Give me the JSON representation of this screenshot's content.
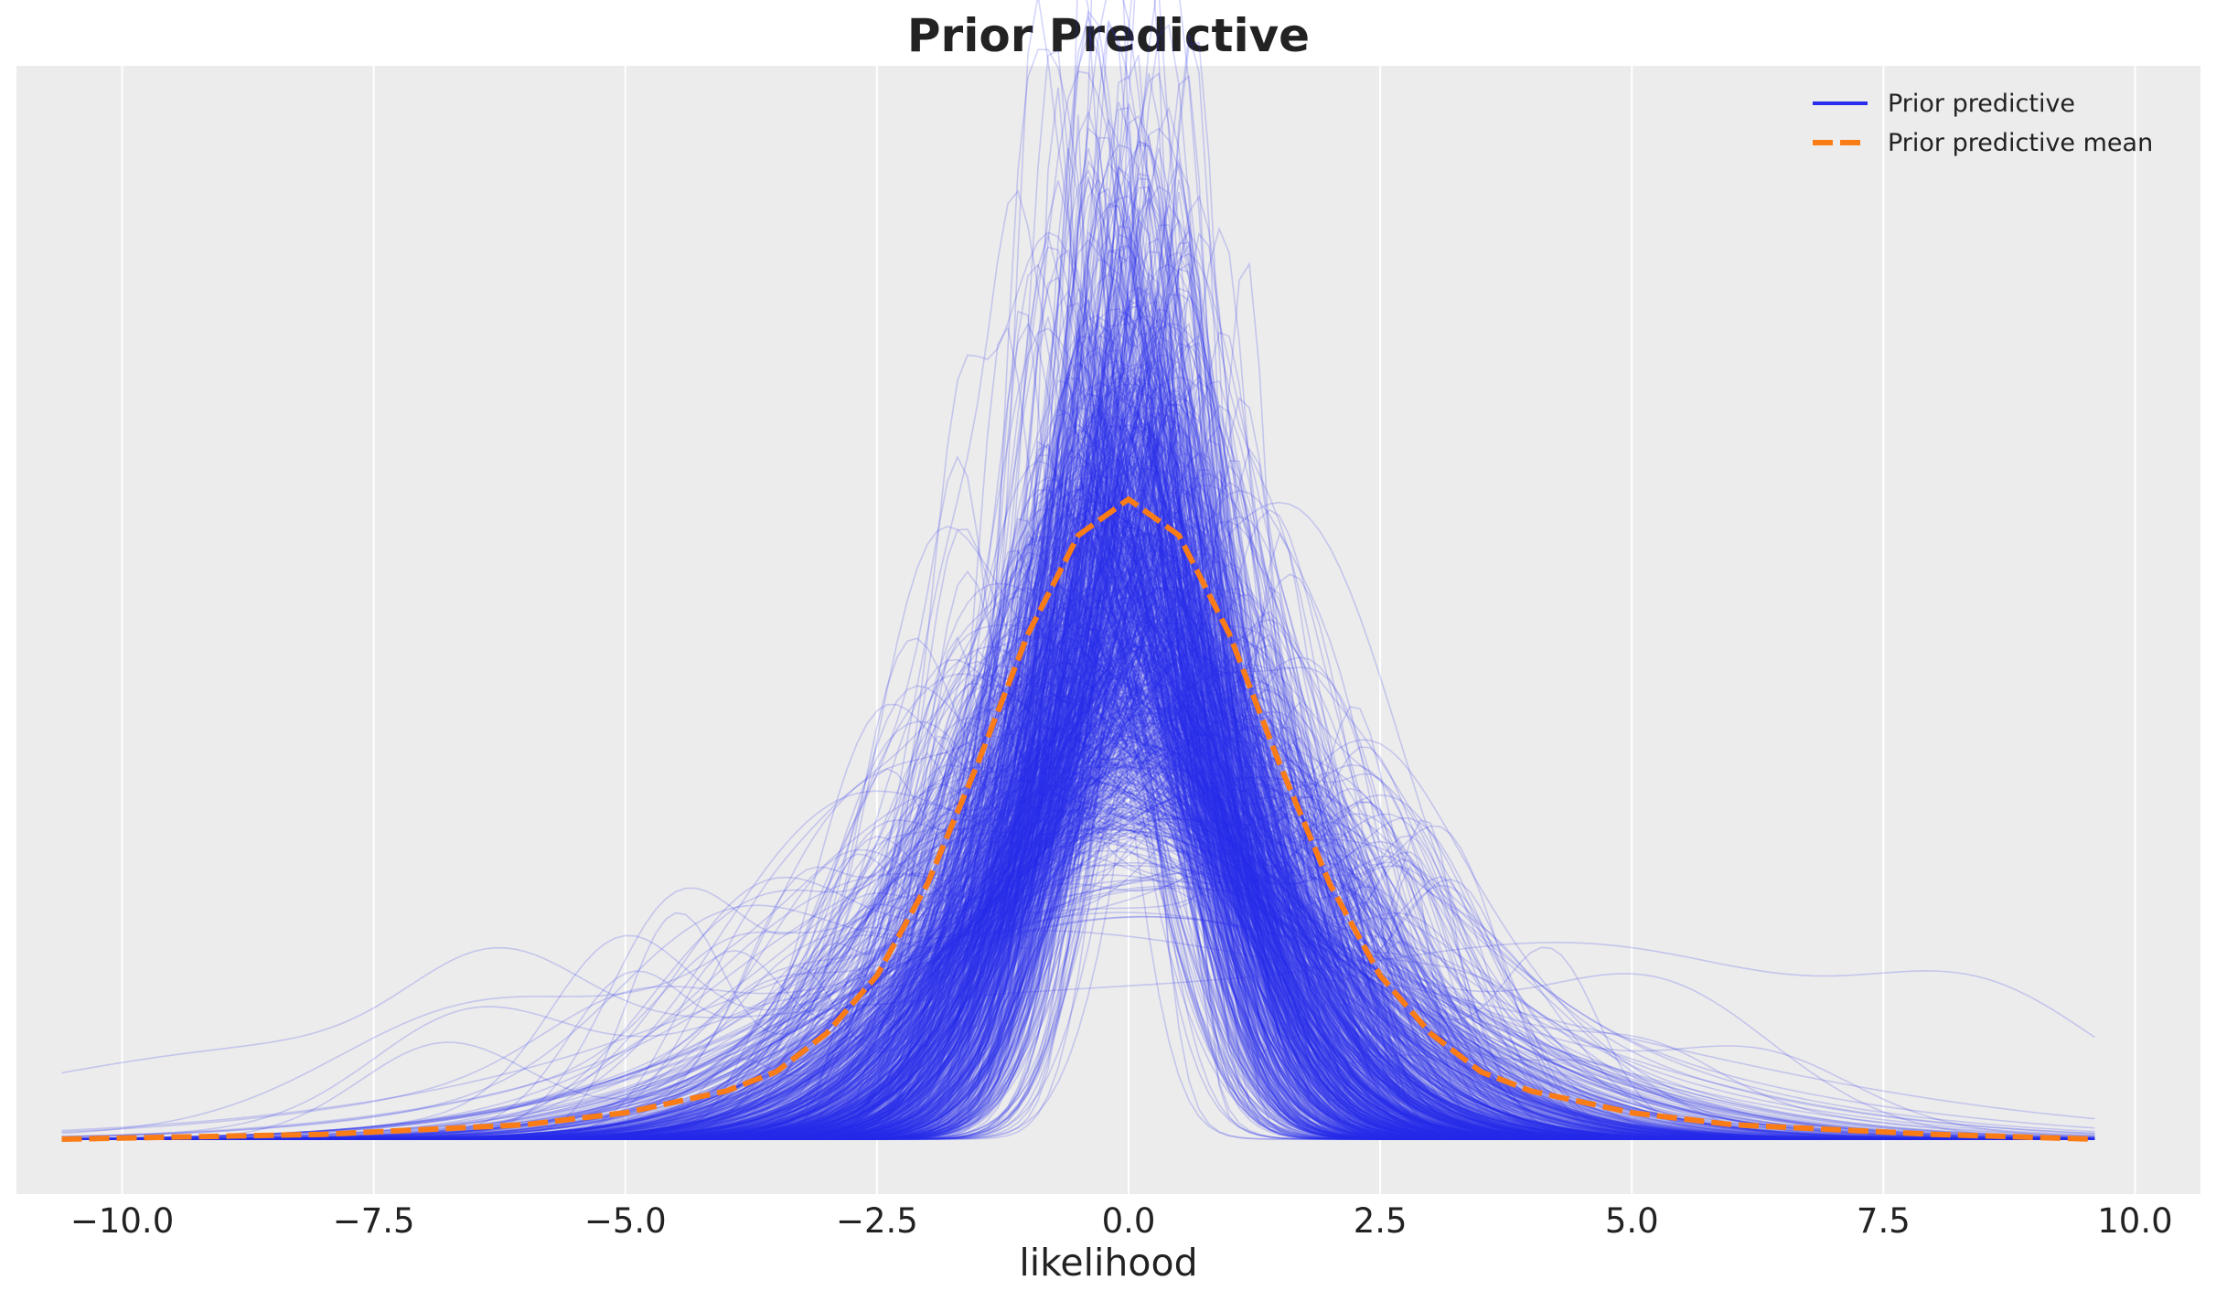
{
  "chart_data": {
    "type": "line",
    "title": "Prior Predictive",
    "xlabel": "likelihood",
    "ylabel": "",
    "xlim": [
      -11.05,
      10.65
    ],
    "x_ticks": [
      -10.0,
      -7.5,
      -5.0,
      -2.5,
      0.0,
      2.5,
      5.0,
      7.5,
      10.0
    ],
    "x_tick_labels": [
      "−10.0",
      "−7.5",
      "−5.0",
      "−2.5",
      "0.0",
      "2.5",
      "5.0",
      "7.5",
      "10.0"
    ],
    "y_ticks_visible": false,
    "grid": "x",
    "legend_position": "top-right",
    "background": "#ececec",
    "series": [
      {
        "name": "Prior predictive",
        "kind": "sample-densities",
        "color": "#2a2eec",
        "opacity": 0.2,
        "approx_sample_count": 1000,
        "x_range": [
          -10.6,
          9.6
        ]
      },
      {
        "name": "Prior predictive mean",
        "kind": "mean-density",
        "color": "#fa7c17",
        "dashed": true,
        "x": [
          -10.6,
          -8.0,
          -6.0,
          -5.0,
          -4.0,
          -3.5,
          -3.0,
          -2.5,
          -2.0,
          -1.5,
          -1.0,
          -0.5,
          0.0,
          0.5,
          1.0,
          1.5,
          2.0,
          2.5,
          3.0,
          3.5,
          4.0,
          5.0,
          6.0,
          8.0,
          9.6
        ],
        "y": [
          0.0,
          0.002,
          0.006,
          0.011,
          0.02,
          0.028,
          0.044,
          0.068,
          0.106,
          0.156,
          0.21,
          0.251,
          0.266,
          0.251,
          0.21,
          0.156,
          0.106,
          0.068,
          0.044,
          0.028,
          0.02,
          0.011,
          0.006,
          0.002,
          0.0
        ]
      }
    ],
    "ylim": [
      0,
      1.55
    ]
  }
}
